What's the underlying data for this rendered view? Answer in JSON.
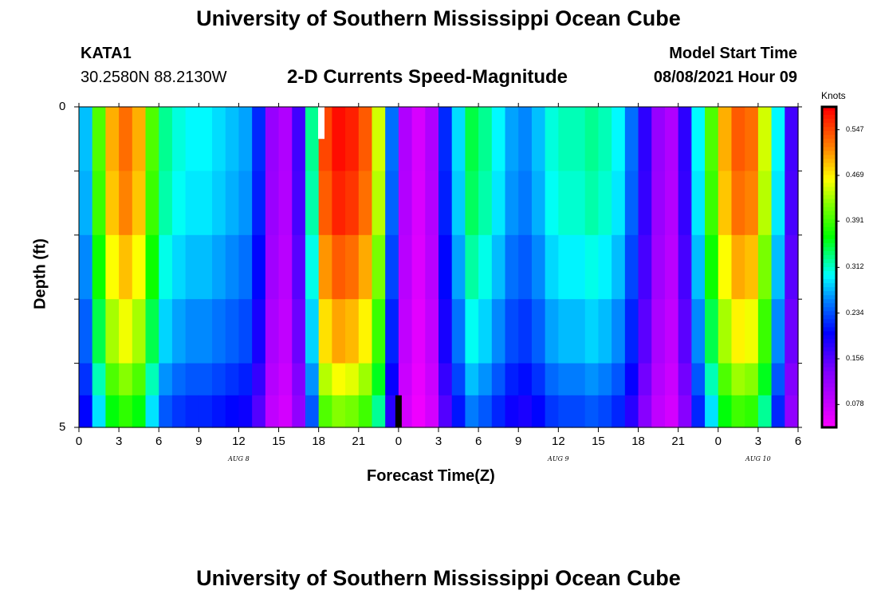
{
  "header": {
    "title_top": "University of Southern Mississippi Ocean Cube",
    "title_bottom": "University of Southern Mississippi Ocean Cube",
    "station_id": "KATA1",
    "station_coords": "30.2580N  88.2130W",
    "plot_title": "2-D Currents Speed-Magnitude",
    "model_label": "Model Start Time",
    "model_time": "08/08/2021 Hour 09"
  },
  "chart_data": {
    "type": "heatmap",
    "title": "2-D Currents Speed-Magnitude",
    "xlabel": "Forecast Time(Z)",
    "ylabel": "Depth (ft)",
    "x_unit": "hours from 00Z Aug 8",
    "xlim": [
      0,
      54
    ],
    "ylim": [
      0,
      5
    ],
    "y_ticks": [
      "0",
      "5"
    ],
    "x_tick_labels": [
      "0",
      "3",
      "6",
      "9",
      "12",
      "15",
      "18",
      "21",
      "0",
      "3",
      "6",
      "9",
      "12",
      "15",
      "18",
      "21",
      "0",
      "3",
      "6"
    ],
    "day_labels": [
      {
        "text": "AUG 8",
        "x": 12
      },
      {
        "text": "AUG 9",
        "x": 36
      },
      {
        "text": "AUG 10",
        "x": 51
      }
    ],
    "colorbar": {
      "unit": "Knots",
      "min": 0.039,
      "max": 0.586,
      "ticks": [
        "0.547",
        "0.469",
        "0.391",
        "0.312",
        "0.234",
        "0.156",
        "0.078"
      ],
      "tick_values": [
        0.547,
        0.469,
        0.391,
        0.312,
        0.234,
        0.156,
        0.078
      ]
    },
    "depth_levels": [
      0,
      1,
      2,
      3,
      4,
      4.5
    ],
    "time_hours": [
      0,
      1,
      2,
      3,
      4,
      5,
      6,
      7,
      8,
      9,
      10,
      11,
      12,
      13,
      14,
      15,
      16,
      17,
      18,
      19,
      20,
      21,
      22,
      23,
      24,
      25,
      26,
      27,
      28,
      29,
      30,
      31,
      32,
      33,
      34,
      35,
      36,
      37,
      38,
      39,
      40,
      41,
      42,
      43,
      44,
      45,
      46,
      47,
      48,
      49,
      50,
      51,
      52,
      53
    ],
    "speed_profile": [
      0.28,
      0.4,
      0.5,
      0.53,
      0.5,
      0.4,
      0.33,
      0.31,
      0.3,
      0.3,
      0.29,
      0.28,
      0.27,
      0.22,
      0.12,
      0.1,
      0.17,
      0.33,
      0.55,
      0.58,
      0.57,
      0.54,
      0.45,
      0.25,
      0.1,
      0.07,
      0.1,
      0.22,
      0.29,
      0.35,
      0.33,
      0.3,
      0.27,
      0.26,
      0.28,
      0.31,
      0.32,
      0.32,
      0.33,
      0.32,
      0.3,
      0.25,
      0.18,
      0.12,
      0.1,
      0.18,
      0.3,
      0.4,
      0.5,
      0.54,
      0.53,
      0.45,
      0.3,
      0.17
    ],
    "depth_factors": [
      1.0,
      0.98,
      0.93,
      0.87,
      0.8,
      0.73
    ],
    "markers": [
      {
        "type": "model-start",
        "x": 18.2,
        "depth_from": 0,
        "depth_to": 0.5,
        "color": "#ffffff"
      },
      {
        "type": "current-time",
        "x": 24,
        "depth_from": 4.5,
        "depth_to": 5,
        "color": "#000000"
      }
    ]
  }
}
